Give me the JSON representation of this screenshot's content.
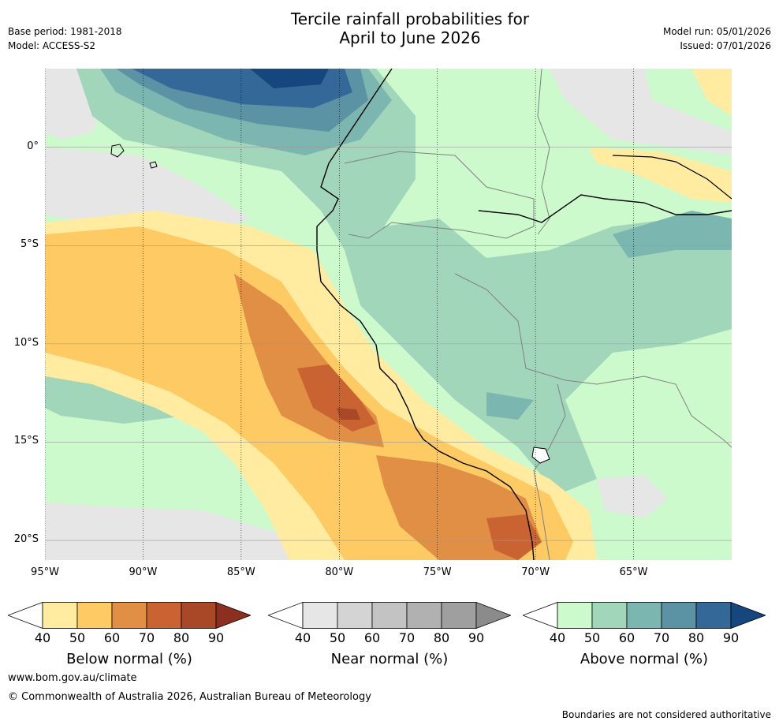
{
  "header": {
    "title_line1": "Tercile rainfall probabilities for",
    "title_line2": "April to June 2026",
    "base_period": "Base period: 1981-2018",
    "model": "Model: ACCESS-S2",
    "model_run": "Model run: 05/01/2026",
    "issued": "Issued: 07/01/2026"
  },
  "map": {
    "lat_labels": [
      "0°",
      "5°S",
      "10°S",
      "15°S",
      "20°S"
    ],
    "lon_labels": [
      "95°W",
      "90°W",
      "85°W",
      "80°W",
      "75°W",
      "70°W",
      "65°W"
    ],
    "lat_values": [
      0,
      -5,
      -10,
      -15,
      -20
    ],
    "lon_values": [
      -95,
      -90,
      -85,
      -80,
      -75,
      -70,
      -65
    ],
    "extent": {
      "lon_min": -95,
      "lon_max": -60,
      "lat_min": -21,
      "lat_max": 4
    }
  },
  "colorbars": [
    {
      "title": "Below normal (%)",
      "ticks": [
        "40",
        "50",
        "60",
        "70",
        "80",
        "90"
      ],
      "colors": [
        "#ffffff",
        "#ffeca0",
        "#fdca64",
        "#e08f45",
        "#c96332",
        "#a84826",
        "#8b3020"
      ]
    },
    {
      "title": "Near normal (%)",
      "ticks": [
        "40",
        "50",
        "60",
        "70",
        "80",
        "90"
      ],
      "colors": [
        "#ffffff",
        "#e6e6e6",
        "#d4d4d4",
        "#c3c3c3",
        "#b1b1b1",
        "#9f9f9f",
        "#8b8b8b"
      ]
    },
    {
      "title": "Above normal (%)",
      "ticks": [
        "40",
        "50",
        "60",
        "70",
        "80",
        "90"
      ],
      "colors": [
        "#ffffff",
        "#ccfacc",
        "#a2d6bb",
        "#7cb6b0",
        "#5b93a4",
        "#346898",
        "#16467e"
      ]
    }
  ],
  "footer": {
    "url": "www.bom.gov.au/climate",
    "copyright": "© Commonwealth of Australia 2026, Australian Bureau of Meteorology",
    "disclaimer": "Boundaries are not considered authoritative"
  }
}
